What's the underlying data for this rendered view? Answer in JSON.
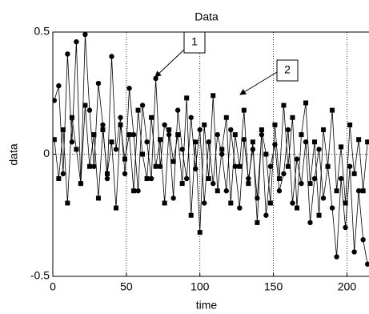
{
  "chart_data": {
    "type": "line",
    "title": "Data",
    "x_label": "time",
    "y_label": "data",
    "x": [
      1,
      4,
      7,
      10,
      13,
      16,
      19,
      22,
      25,
      28,
      31,
      34,
      37,
      40,
      43,
      46,
      49,
      52,
      55,
      58,
      61,
      64,
      67,
      70,
      73,
      76,
      79,
      82,
      85,
      88,
      91,
      94,
      97,
      100,
      103,
      106,
      109,
      112,
      115,
      118,
      121,
      124,
      127,
      130,
      133,
      136,
      139,
      142,
      145,
      148,
      151,
      154,
      157,
      160,
      163,
      166,
      169,
      172,
      175,
      178,
      181,
      184,
      187,
      190,
      193,
      196,
      199,
      202,
      205,
      208,
      211,
      214
    ],
    "series": [
      {
        "color": "#000000",
        "marker": "circle",
        "values": [
          0.22,
          0.28,
          -0.08,
          0.41,
          0.05,
          0.46,
          -0.12,
          0.49,
          0.18,
          -0.05,
          0.29,
          0.12,
          -0.1,
          0.4,
          0.02,
          0.15,
          -0.08,
          0.27,
          0.08,
          -0.15,
          0.2,
          0.05,
          -0.1,
          0.31,
          -0.05,
          0.12,
          0.08,
          -0.18,
          0.18,
          0.02,
          -0.1,
          0.15,
          -0.06,
          0.1,
          -0.2,
          0.05,
          -0.12,
          0.08,
          0,
          -0.15,
          0.1,
          -0.05,
          -0.22,
          0.06,
          -0.1,
          0.02,
          -0.18,
          0.08,
          -0.25,
          -0.05,
          0.04,
          -0.15,
          -0.08,
          0.1,
          -0.2,
          -0.02,
          -0.12,
          0.05,
          -0.28,
          -0.1,
          0.02,
          -0.18,
          -0.05,
          -0.22,
          -0.42,
          -0.1,
          -0.3,
          -0.05,
          -0.4,
          -0.15,
          -0.35,
          -0.45
        ]
      },
      {
        "color": "#000000",
        "marker": "square",
        "values": [
          0.06,
          -0.1,
          0.1,
          -0.2,
          0.15,
          0.02,
          -0.12,
          0.2,
          -0.05,
          0.08,
          -0.18,
          0.1,
          -0.08,
          0.05,
          -0.22,
          0.12,
          -0.02,
          0.08,
          -0.15,
          0.18,
          0,
          -0.1,
          0.15,
          -0.05,
          0.06,
          -0.2,
          0.1,
          -0.03,
          0.08,
          -0.12,
          0.23,
          -0.25,
          0.05,
          -0.32,
          0.12,
          -0.1,
          0.24,
          -0.15,
          0.02,
          0.15,
          -0.2,
          0.08,
          -0.05,
          0.18,
          -0.12,
          0.05,
          -0.28,
          0.1,
          0,
          -0.2,
          0.12,
          -0.1,
          0.2,
          -0.05,
          0.15,
          -0.22,
          0.08,
          0.21,
          -0.12,
          0.05,
          -0.25,
          0.1,
          -0.05,
          0.18,
          -0.15,
          0.03,
          -0.2,
          0.12,
          -0.08,
          0.06,
          -0.15,
          0.05
        ]
      }
    ],
    "annotations": [
      "1",
      "2"
    ],
    "xlim": [
      0,
      215
    ],
    "ylim": [
      -0.5,
      0.5
    ],
    "xticks": [
      0,
      50,
      100,
      150,
      200
    ],
    "yticks": [
      -0.5,
      0,
      0.5
    ],
    "grid": true
  }
}
